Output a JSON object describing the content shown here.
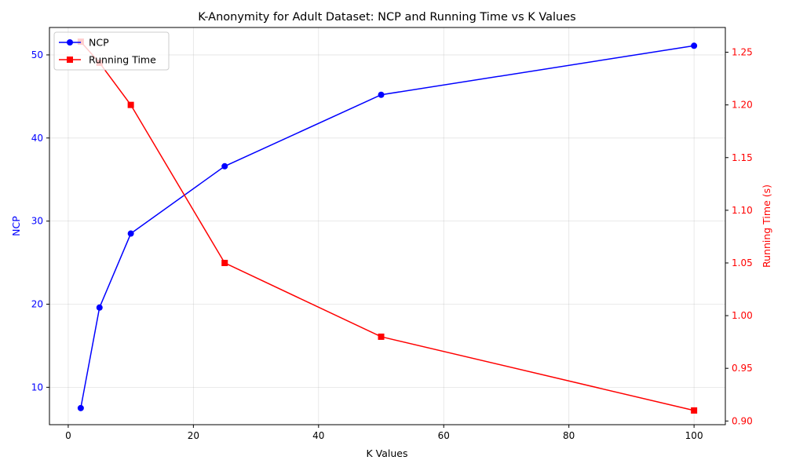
{
  "chart_data": {
    "type": "line",
    "title": "K-Anonymity for Adult Dataset: NCP and Running Time vs K Values",
    "xlabel": "K Values",
    "ylabel_left": "NCP",
    "ylabel_right": "Running Time (s)",
    "x": [
      2,
      5,
      10,
      25,
      50,
      100
    ],
    "xlim": [
      -3.0,
      105.0
    ],
    "ylim_left": [
      5.5,
      53.3
    ],
    "ylim_right": [
      0.8965,
      1.2735
    ],
    "x_ticks": [
      0,
      20,
      40,
      60,
      80,
      100
    ],
    "y_ticks_left": [
      10,
      20,
      30,
      40,
      50
    ],
    "y_ticks_right": [
      0.9,
      0.95,
      1.0,
      1.05,
      1.1,
      1.15,
      1.2,
      1.25
    ],
    "grid": true,
    "legend_position": "top-left",
    "series": [
      {
        "name": "NCP",
        "axis": "left",
        "marker": "circle",
        "color": "#0000ff",
        "values": [
          7.5,
          19.6,
          28.5,
          36.6,
          45.2,
          51.1
        ]
      },
      {
        "name": "Running Time",
        "axis": "right",
        "marker": "square",
        "color": "#ff0000",
        "values": [
          1.26,
          1.24,
          1.2,
          1.05,
          0.98,
          0.91
        ]
      }
    ]
  }
}
